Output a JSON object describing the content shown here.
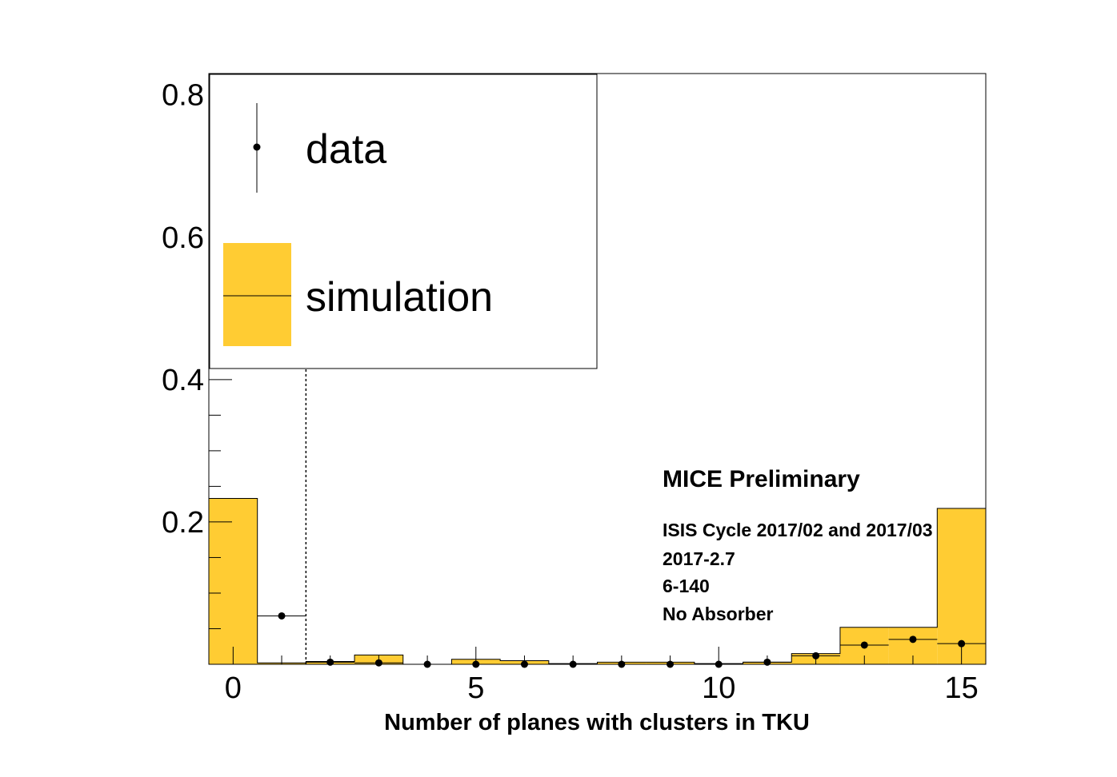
{
  "chart_data": {
    "type": "bar",
    "xlabel": "Number of planes with clusters in TKU",
    "ylabel": "",
    "xlim": [
      -0.5,
      15.5
    ],
    "ylim": [
      0,
      0.83
    ],
    "x_ticks": [
      0,
      5,
      10,
      15
    ],
    "y_ticks": [
      0.2,
      0.4,
      0.6,
      0.8
    ],
    "bins": [
      0,
      1,
      2,
      3,
      4,
      5,
      6,
      7,
      8,
      9,
      10,
      11,
      12,
      13,
      14,
      15
    ],
    "series": [
      {
        "name": "data",
        "style": "points",
        "values": [
          null,
          0.068,
          0.003,
          0.002,
          0.0,
          0.0,
          0.0,
          0.0,
          0.0,
          0.0,
          0.0,
          0.003,
          0.012,
          0.027,
          0.035,
          0.029
        ]
      },
      {
        "name": "simulation",
        "style": "filled-histogram",
        "values": [
          0.233,
          0.002,
          0.004,
          0.013,
          0.0,
          0.007,
          0.005,
          0.001,
          0.003,
          0.003,
          0.001,
          0.003,
          0.015,
          0.052,
          0.052,
          0.219
        ]
      }
    ],
    "cut_line_x": 1.5,
    "legend": {
      "placement": "top-left",
      "entries": [
        {
          "label": "data"
        },
        {
          "label": "simulation"
        }
      ]
    },
    "annotations": {
      "title": "MICE Preliminary",
      "lines": [
        "ISIS Cycle 2017/02 and 2017/03",
        "2017-2.7",
        "6-140",
        "No Absorber"
      ]
    },
    "colors": {
      "simulation_fill": "#ffcc33",
      "data_marker": "#000000",
      "axis": "#000000"
    }
  }
}
